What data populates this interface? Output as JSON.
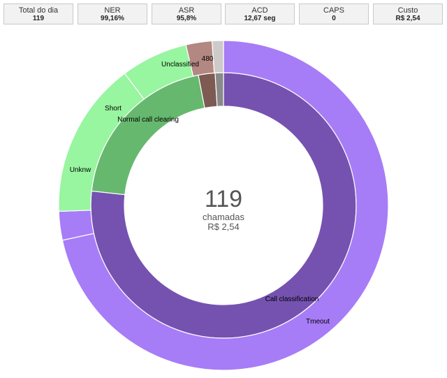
{
  "stats": [
    {
      "label": "Total do dia",
      "value": "119"
    },
    {
      "label": "NER",
      "value": "99,16%"
    },
    {
      "label": "ASR",
      "value": "95,8%"
    },
    {
      "label": "ACD",
      "value": "12,67 seg"
    },
    {
      "label": "CAPS",
      "value": "0"
    },
    {
      "label": "Custo",
      "value": "R$ 2,54"
    }
  ],
  "center": {
    "count": "119",
    "unit": "chamadas",
    "cost": "R$ 2,54"
  },
  "chart_data": {
    "type": "pie",
    "rings": [
      {
        "ring": "inner",
        "slices": [
          {
            "label": "Call classification",
            "value": 91,
            "color": "#7552b0"
          },
          {
            "label": "Normal call clearing",
            "value": 24,
            "color": "#66b86e"
          },
          {
            "label": "",
            "value": 2.4,
            "color": "#7d5a52"
          },
          {
            "label": "",
            "value": 1.2,
            "color": "#8a8a8a"
          }
        ]
      },
      {
        "ring": "outer",
        "slices": [
          {
            "label": "Tmeout",
            "value": 84,
            "color": "#a77cf7"
          },
          {
            "label": "Unknw",
            "value": 3.3,
            "color": "#a77cf7"
          },
          {
            "label": "Short",
            "value": 18,
            "color": "#98f5a0"
          },
          {
            "label": "Unclassified",
            "value": 7.7,
            "color": "#98f5a0"
          },
          {
            "label": "480",
            "value": 3.0,
            "color": "#b38782"
          },
          {
            "label": "",
            "value": 1.3,
            "color": "#cfcaca"
          }
        ]
      }
    ]
  }
}
